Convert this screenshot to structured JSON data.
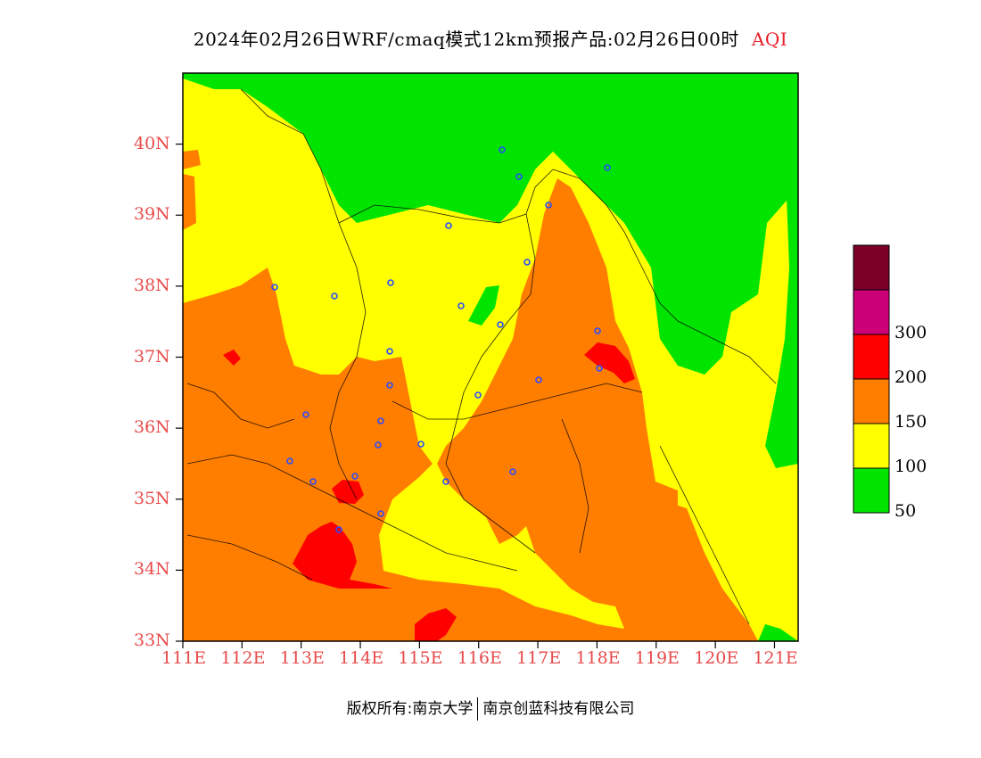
{
  "title": {
    "main": "2024年02月26日WRF/cmaq模式12km预报产品:02月26日00时",
    "tag": "AQI"
  },
  "map": {
    "lat_labels": [
      "40N",
      "39N",
      "38N",
      "37N",
      "36N",
      "35N",
      "34N",
      "33N"
    ],
    "lon_labels": [
      "111E",
      "112E",
      "113E",
      "114E",
      "115E",
      "116E",
      "117E",
      "118E",
      "119E",
      "120E",
      "121E"
    ],
    "extent": {
      "lon_min": 111,
      "lon_max": 121.4,
      "lat_min": 33,
      "lat_max": 41
    }
  },
  "legend": {
    "levels": [
      {
        "label": "",
        "color": "#7a0026"
      },
      {
        "label": "300",
        "color": "#cc0077"
      },
      {
        "label": "200",
        "color": "#ff0000"
      },
      {
        "label": "150",
        "color": "#ff7e00"
      },
      {
        "label": "100",
        "color": "#ffff00"
      },
      {
        "label": "50",
        "color": "#00e400"
      }
    ]
  },
  "footer": {
    "left": "版权所有:南京大学",
    "right": "南京创蓝科技有限公司"
  }
}
